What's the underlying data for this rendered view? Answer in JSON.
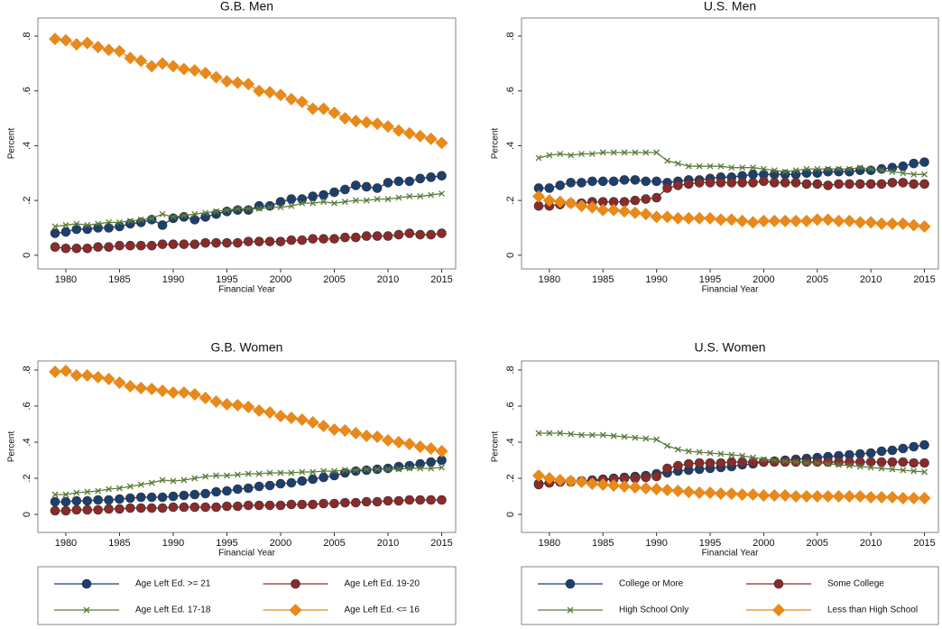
{
  "chart_data": [
    {
      "type": "line",
      "title": "G.B. Men",
      "x_label": "Financial Year",
      "y_label": "Percent",
      "legend": "bottom",
      "x": [
        1979,
        1980,
        1981,
        1982,
        1983,
        1984,
        1985,
        1986,
        1987,
        1988,
        1989,
        1990,
        1991,
        1992,
        1993,
        1994,
        1995,
        1996,
        1997,
        1998,
        1999,
        2000,
        2001,
        2002,
        2003,
        2004,
        2005,
        2006,
        2007,
        2008,
        2009,
        2010,
        2011,
        2012,
        2013,
        2014,
        2015
      ],
      "xlim": [
        1977.4,
        2016.3
      ],
      "xticks": [
        1980,
        1985,
        1990,
        1995,
        2000,
        2005,
        2010,
        2015
      ],
      "ylim": [
        -0.05,
        0.866
      ],
      "yticks": [
        {
          "value": 0,
          "label": "0"
        },
        {
          "value": 0.2,
          "label": ".2"
        },
        {
          "value": 0.4,
          "label": ".4"
        },
        {
          "value": 0.6,
          "label": ".6"
        },
        {
          "value": 0.8,
          "label": ".8"
        }
      ],
      "series": [
        {
          "name": "Age Left Ed. >= 21",
          "color": "#1c3f6e",
          "marker": "circle",
          "values": [
            0.08,
            0.085,
            0.095,
            0.095,
            0.1,
            0.1,
            0.105,
            0.115,
            0.12,
            0.13,
            0.11,
            0.135,
            0.14,
            0.13,
            0.14,
            0.15,
            0.16,
            0.165,
            0.165,
            0.18,
            0.18,
            0.195,
            0.205,
            0.205,
            0.215,
            0.22,
            0.23,
            0.24,
            0.255,
            0.25,
            0.245,
            0.265,
            0.27,
            0.27,
            0.28,
            0.285,
            0.29
          ]
        },
        {
          "name": "Age Left Ed. 19-20",
          "color": "#8b2a2a",
          "marker": "circle",
          "values": [
            0.03,
            0.025,
            0.025,
            0.025,
            0.03,
            0.03,
            0.035,
            0.035,
            0.035,
            0.035,
            0.04,
            0.04,
            0.04,
            0.04,
            0.045,
            0.045,
            0.045,
            0.045,
            0.05,
            0.05,
            0.05,
            0.05,
            0.055,
            0.055,
            0.06,
            0.06,
            0.06,
            0.065,
            0.065,
            0.07,
            0.07,
            0.07,
            0.075,
            0.08,
            0.075,
            0.075,
            0.08
          ]
        },
        {
          "name": "Age Left Ed. 17-18",
          "color": "#5b7b3a",
          "marker": "x",
          "values": [
            0.105,
            0.11,
            0.115,
            0.11,
            0.115,
            0.12,
            0.12,
            0.125,
            0.13,
            0.135,
            0.15,
            0.14,
            0.145,
            0.15,
            0.155,
            0.16,
            0.165,
            0.17,
            0.17,
            0.17,
            0.175,
            0.175,
            0.18,
            0.19,
            0.19,
            0.195,
            0.19,
            0.195,
            0.2,
            0.2,
            0.205,
            0.205,
            0.21,
            0.215,
            0.215,
            0.22,
            0.225
          ]
        },
        {
          "name": "Age Left Ed. <= 16",
          "color": "#e8891c",
          "marker": "diamond",
          "values": [
            0.79,
            0.785,
            0.77,
            0.775,
            0.76,
            0.75,
            0.745,
            0.72,
            0.71,
            0.69,
            0.7,
            0.69,
            0.68,
            0.675,
            0.665,
            0.65,
            0.635,
            0.63,
            0.625,
            0.6,
            0.595,
            0.585,
            0.57,
            0.56,
            0.535,
            0.535,
            0.52,
            0.5,
            0.49,
            0.485,
            0.48,
            0.47,
            0.455,
            0.445,
            0.435,
            0.425,
            0.41
          ]
        }
      ]
    },
    {
      "type": "line",
      "title": "U.S. Men",
      "x_label": "Financial Year",
      "y_label": "Percent",
      "legend": "bottom",
      "x": [
        1979,
        1980,
        1981,
        1982,
        1983,
        1984,
        1985,
        1986,
        1987,
        1988,
        1989,
        1990,
        1991,
        1992,
        1993,
        1994,
        1995,
        1996,
        1997,
        1998,
        1999,
        2000,
        2001,
        2002,
        2003,
        2004,
        2005,
        2006,
        2007,
        2008,
        2009,
        2010,
        2011,
        2012,
        2013,
        2014,
        2015
      ],
      "xlim": [
        1977.4,
        2016.3
      ],
      "xticks": [
        1980,
        1985,
        1990,
        1995,
        2000,
        2005,
        2010,
        2015
      ],
      "ylim": [
        -0.05,
        0.866
      ],
      "yticks": [
        {
          "value": 0,
          "label": "0"
        },
        {
          "value": 0.2,
          "label": ".2"
        },
        {
          "value": 0.4,
          "label": ".4"
        },
        {
          "value": 0.6,
          "label": ".6"
        },
        {
          "value": 0.8,
          "label": ".8"
        }
      ],
      "series": [
        {
          "name": "College or More",
          "color": "#1c3f6e",
          "marker": "circle",
          "values": [
            0.245,
            0.245,
            0.255,
            0.265,
            0.265,
            0.27,
            0.27,
            0.27,
            0.275,
            0.275,
            0.27,
            0.27,
            0.265,
            0.27,
            0.275,
            0.275,
            0.28,
            0.285,
            0.285,
            0.29,
            0.295,
            0.295,
            0.295,
            0.295,
            0.295,
            0.3,
            0.3,
            0.305,
            0.305,
            0.305,
            0.31,
            0.31,
            0.315,
            0.32,
            0.325,
            0.335,
            0.34
          ]
        },
        {
          "name": "Some College",
          "color": "#8b2a2a",
          "marker": "circle",
          "values": [
            0.18,
            0.18,
            0.185,
            0.19,
            0.19,
            0.195,
            0.195,
            0.195,
            0.195,
            0.2,
            0.205,
            0.21,
            0.245,
            0.255,
            0.26,
            0.265,
            0.265,
            0.265,
            0.265,
            0.265,
            0.265,
            0.27,
            0.265,
            0.265,
            0.265,
            0.26,
            0.26,
            0.255,
            0.26,
            0.26,
            0.26,
            0.26,
            0.26,
            0.265,
            0.265,
            0.26,
            0.26
          ]
        },
        {
          "name": "High School Only",
          "color": "#5b7b3a",
          "marker": "x",
          "values": [
            0.355,
            0.365,
            0.37,
            0.365,
            0.37,
            0.37,
            0.375,
            0.375,
            0.375,
            0.375,
            0.375,
            0.375,
            0.345,
            0.335,
            0.325,
            0.325,
            0.325,
            0.325,
            0.32,
            0.32,
            0.32,
            0.315,
            0.31,
            0.305,
            0.31,
            0.315,
            0.315,
            0.315,
            0.315,
            0.315,
            0.32,
            0.315,
            0.31,
            0.305,
            0.3,
            0.295,
            0.295
          ]
        },
        {
          "name": "Less than High School",
          "color": "#e8891c",
          "marker": "diamond",
          "values": [
            0.215,
            0.2,
            0.195,
            0.19,
            0.18,
            0.175,
            0.165,
            0.165,
            0.16,
            0.155,
            0.15,
            0.14,
            0.14,
            0.135,
            0.135,
            0.135,
            0.135,
            0.13,
            0.13,
            0.125,
            0.12,
            0.125,
            0.125,
            0.125,
            0.125,
            0.125,
            0.13,
            0.13,
            0.125,
            0.125,
            0.12,
            0.12,
            0.115,
            0.115,
            0.115,
            0.11,
            0.105
          ]
        }
      ]
    },
    {
      "type": "line",
      "title": "G.B. Women",
      "x_label": "Financial Year",
      "y_label": "Percent",
      "x": [
        1979,
        1980,
        1981,
        1982,
        1983,
        1984,
        1985,
        1986,
        1987,
        1988,
        1989,
        1990,
        1991,
        1992,
        1993,
        1994,
        1995,
        1996,
        1997,
        1998,
        1999,
        2000,
        2001,
        2002,
        2003,
        2004,
        2005,
        2006,
        2007,
        2008,
        2009,
        2010,
        2011,
        2012,
        2013,
        2014,
        2015
      ],
      "xlim": [
        1977.4,
        2016.3
      ],
      "xticks": [
        1980,
        1985,
        1990,
        1995,
        2000,
        2005,
        2010,
        2015
      ],
      "ylim": [
        -0.1,
        0.85
      ],
      "yticks": [
        {
          "value": 0,
          "label": "0"
        },
        {
          "value": 0.2,
          "label": ".2"
        },
        {
          "value": 0.4,
          "label": ".4"
        },
        {
          "value": 0.6,
          "label": ".6"
        },
        {
          "value": 0.8,
          "label": ".8"
        }
      ],
      "series": [
        {
          "color": "#1c3f6e",
          "marker": "circle",
          "values": [
            0.07,
            0.07,
            0.075,
            0.075,
            0.08,
            0.08,
            0.085,
            0.09,
            0.095,
            0.095,
            0.095,
            0.1,
            0.105,
            0.11,
            0.115,
            0.125,
            0.13,
            0.14,
            0.145,
            0.155,
            0.16,
            0.17,
            0.175,
            0.185,
            0.195,
            0.205,
            0.215,
            0.23,
            0.24,
            0.245,
            0.25,
            0.255,
            0.265,
            0.27,
            0.28,
            0.29,
            0.3
          ]
        },
        {
          "color": "#8b2a2a",
          "marker": "circle",
          "values": [
            0.02,
            0.02,
            0.025,
            0.025,
            0.025,
            0.03,
            0.03,
            0.035,
            0.035,
            0.035,
            0.035,
            0.04,
            0.04,
            0.04,
            0.04,
            0.04,
            0.045,
            0.045,
            0.05,
            0.05,
            0.05,
            0.05,
            0.055,
            0.055,
            0.055,
            0.06,
            0.06,
            0.065,
            0.065,
            0.07,
            0.07,
            0.075,
            0.075,
            0.08,
            0.08,
            0.08,
            0.08
          ]
        },
        {
          "color": "#5b7b3a",
          "marker": "x",
          "values": [
            0.11,
            0.11,
            0.12,
            0.125,
            0.13,
            0.14,
            0.145,
            0.155,
            0.165,
            0.175,
            0.19,
            0.185,
            0.19,
            0.2,
            0.21,
            0.215,
            0.215,
            0.22,
            0.225,
            0.225,
            0.23,
            0.23,
            0.23,
            0.235,
            0.235,
            0.24,
            0.24,
            0.245,
            0.245,
            0.25,
            0.25,
            0.25,
            0.25,
            0.255,
            0.255,
            0.255,
            0.26
          ]
        },
        {
          "color": "#e8891c",
          "marker": "diamond",
          "values": [
            0.79,
            0.795,
            0.77,
            0.77,
            0.76,
            0.75,
            0.73,
            0.71,
            0.7,
            0.695,
            0.685,
            0.675,
            0.675,
            0.665,
            0.645,
            0.625,
            0.61,
            0.605,
            0.595,
            0.575,
            0.565,
            0.545,
            0.535,
            0.525,
            0.51,
            0.49,
            0.47,
            0.465,
            0.45,
            0.435,
            0.43,
            0.41,
            0.4,
            0.39,
            0.375,
            0.365,
            0.35
          ]
        }
      ]
    },
    {
      "type": "line",
      "title": "U.S. Women",
      "x_label": "Financial Year",
      "y_label": "Percent",
      "x": [
        1979,
        1980,
        1981,
        1982,
        1983,
        1984,
        1985,
        1986,
        1987,
        1988,
        1989,
        1990,
        1991,
        1992,
        1993,
        1994,
        1995,
        1996,
        1997,
        1998,
        1999,
        2000,
        2001,
        2002,
        2003,
        2004,
        2005,
        2006,
        2007,
        2008,
        2009,
        2010,
        2011,
        2012,
        2013,
        2014,
        2015
      ],
      "xlim": [
        1977.4,
        2016.3
      ],
      "xticks": [
        1980,
        1985,
        1990,
        1995,
        2000,
        2005,
        2010,
        2015
      ],
      "ylim": [
        -0.1,
        0.85
      ],
      "yticks": [
        {
          "value": 0,
          "label": "0"
        },
        {
          "value": 0.2,
          "label": ".2"
        },
        {
          "value": 0.4,
          "label": ".4"
        },
        {
          "value": 0.6,
          "label": ".6"
        },
        {
          "value": 0.8,
          "label": ".8"
        }
      ],
      "series": [
        {
          "color": "#1c3f6e",
          "marker": "circle",
          "values": [
            0.17,
            0.175,
            0.18,
            0.185,
            0.185,
            0.19,
            0.195,
            0.2,
            0.205,
            0.21,
            0.215,
            0.225,
            0.23,
            0.24,
            0.245,
            0.25,
            0.255,
            0.26,
            0.265,
            0.275,
            0.28,
            0.29,
            0.295,
            0.3,
            0.305,
            0.31,
            0.315,
            0.32,
            0.325,
            0.33,
            0.335,
            0.34,
            0.35,
            0.355,
            0.365,
            0.375,
            0.385
          ]
        },
        {
          "color": "#8b2a2a",
          "marker": "circle",
          "values": [
            0.165,
            0.175,
            0.18,
            0.18,
            0.185,
            0.185,
            0.19,
            0.195,
            0.2,
            0.2,
            0.205,
            0.21,
            0.255,
            0.27,
            0.28,
            0.285,
            0.285,
            0.285,
            0.29,
            0.29,
            0.29,
            0.29,
            0.29,
            0.29,
            0.29,
            0.29,
            0.29,
            0.29,
            0.29,
            0.29,
            0.29,
            0.29,
            0.29,
            0.29,
            0.29,
            0.285,
            0.285
          ]
        },
        {
          "color": "#5b7b3a",
          "marker": "x",
          "values": [
            0.45,
            0.45,
            0.45,
            0.445,
            0.44,
            0.44,
            0.44,
            0.435,
            0.43,
            0.425,
            0.42,
            0.415,
            0.38,
            0.36,
            0.35,
            0.345,
            0.34,
            0.335,
            0.33,
            0.325,
            0.315,
            0.305,
            0.3,
            0.295,
            0.29,
            0.285,
            0.285,
            0.28,
            0.275,
            0.27,
            0.265,
            0.26,
            0.255,
            0.25,
            0.245,
            0.24,
            0.235
          ]
        },
        {
          "color": "#e8891c",
          "marker": "diamond",
          "values": [
            0.215,
            0.2,
            0.19,
            0.185,
            0.18,
            0.17,
            0.165,
            0.16,
            0.155,
            0.15,
            0.145,
            0.14,
            0.135,
            0.13,
            0.125,
            0.12,
            0.12,
            0.115,
            0.115,
            0.11,
            0.11,
            0.105,
            0.105,
            0.105,
            0.1,
            0.1,
            0.1,
            0.1,
            0.1,
            0.1,
            0.1,
            0.095,
            0.095,
            0.095,
            0.09,
            0.09,
            0.09
          ]
        }
      ]
    }
  ]
}
